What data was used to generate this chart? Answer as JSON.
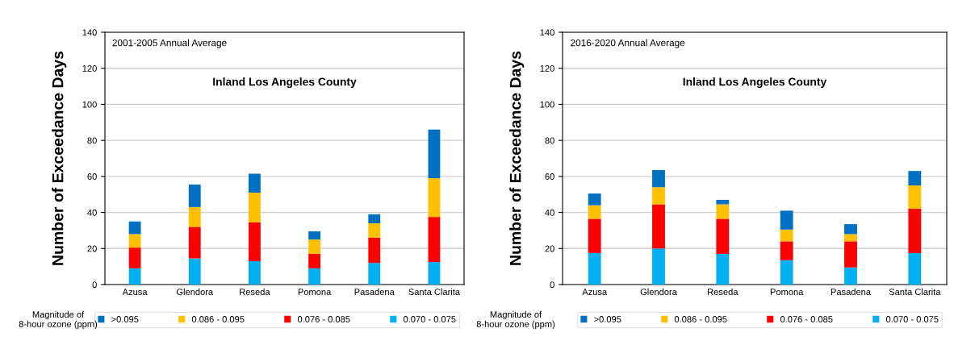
{
  "chart_data": [
    {
      "type": "bar",
      "stacked": true,
      "title": "Inland Los Angeles County",
      "subtitle": "2001-2005 Annual Average",
      "ylabel": "Number of Exceedance Days",
      "legend_title": "Magnitude of 8-hour ozone (ppm)",
      "legend": "bottom",
      "grid": "y",
      "categories": [
        "Azusa",
        "Glendora",
        "Reseda",
        "Pomona",
        "Pasadena",
        "Santa Clarita"
      ],
      "ylim": [
        0,
        140
      ],
      "yticks": [
        0,
        20,
        40,
        60,
        80,
        100,
        120,
        140
      ],
      "series": [
        {
          "name": "0.070 - 0.075",
          "color": "#00b0f0",
          "values": [
            9,
            14.5,
            13,
            9,
            12,
            12.5
          ]
        },
        {
          "name": "0.076 - 0.085",
          "color": "#ff0000",
          "values": [
            11.5,
            17.5,
            21.5,
            8,
            14,
            25
          ]
        },
        {
          "name": "0.086 - 0.095",
          "color": "#ffc000",
          "values": [
            7.5,
            11,
            16.5,
            8,
            8,
            21.5
          ]
        },
        {
          "name": ">0.095",
          "color": "#0070c0",
          "values": [
            7,
            12.5,
            10.5,
            4.5,
            5,
            27
          ]
        }
      ]
    },
    {
      "type": "bar",
      "stacked": true,
      "title": "Inland Los Angeles County",
      "subtitle": "2016-2020 Annual Average",
      "ylabel": "Number of Exceedance Days",
      "legend_title": "Magnitude of 8-hour ozone (ppm)",
      "legend": "bottom",
      "grid": "y",
      "categories": [
        "Azusa",
        "Glendora",
        "Reseda",
        "Pomona",
        "Pasadena",
        "Santa Clarita"
      ],
      "ylim": [
        0,
        140
      ],
      "yticks": [
        0,
        20,
        40,
        60,
        80,
        100,
        120,
        140
      ],
      "series": [
        {
          "name": "0.070 - 0.075",
          "color": "#00b0f0",
          "values": [
            17.5,
            20,
            17,
            13.5,
            9.5,
            17.5
          ]
        },
        {
          "name": "0.076 - 0.085",
          "color": "#ff0000",
          "values": [
            19,
            24.5,
            19.5,
            10.5,
            14.5,
            24.5
          ]
        },
        {
          "name": "0.086 - 0.095",
          "color": "#ffc000",
          "values": [
            7.5,
            9.5,
            8,
            6.5,
            4,
            13
          ]
        },
        {
          "name": ">0.095",
          "color": "#0070c0",
          "values": [
            6.5,
            9.5,
            2.5,
            10.5,
            5.5,
            8
          ]
        }
      ]
    }
  ]
}
